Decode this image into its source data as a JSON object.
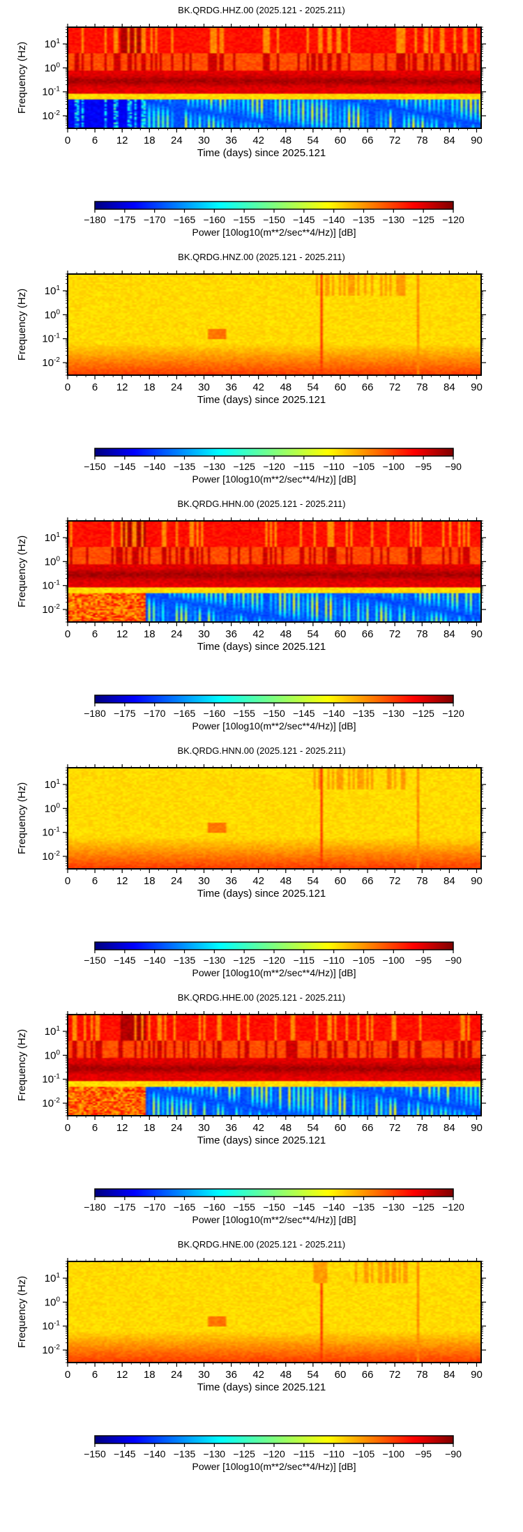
{
  "chart_data": [
    {
      "type": "heatmap",
      "title": "BK.QRDG.HHZ.00 (2025.121 - 2025.211)",
      "xlabel": "Time (days) since 2025.121",
      "ylabel": "Frequency (Hz)",
      "xlim": [
        0,
        91
      ],
      "x_ticks": [
        0,
        6,
        12,
        18,
        24,
        30,
        36,
        42,
        48,
        54,
        60,
        66,
        72,
        78,
        84,
        90
      ],
      "ylim": [
        0.003,
        50
      ],
      "y_scale": "log",
      "y_ticks": [
        "10^-2",
        "10^-1",
        "10^0",
        "10^1"
      ],
      "colorbar": {
        "label": "Power [10log10(m**2/sec**4/Hz)] [dB]",
        "range": [
          -180,
          -120
        ],
        "ticks": [
          -180,
          -175,
          -170,
          -165,
          -160,
          -155,
          -150,
          -145,
          -140,
          -135,
          -130,
          -125,
          -120
        ],
        "colormap": "jet"
      },
      "style": "active"
    },
    {
      "type": "heatmap",
      "title": "BK.QRDG.HNZ.00 (2025.121 - 2025.211)",
      "xlabel": "Time (days) since 2025.121",
      "ylabel": "Frequency (Hz)",
      "xlim": [
        0,
        91
      ],
      "x_ticks": [
        0,
        6,
        12,
        18,
        24,
        30,
        36,
        42,
        48,
        54,
        60,
        66,
        72,
        78,
        84,
        90
      ],
      "ylim": [
        0.003,
        50
      ],
      "y_scale": "log",
      "y_ticks": [
        "10^-2",
        "10^-1",
        "10^0",
        "10^1"
      ],
      "colorbar": {
        "label": "Power [10log10(m**2/sec**4/Hz)] [dB]",
        "range": [
          -150,
          -90
        ],
        "ticks": [
          -150,
          -145,
          -140,
          -135,
          -130,
          -125,
          -120,
          -115,
          -110,
          -105,
          -100,
          -95,
          -90
        ],
        "colormap": "jet"
      },
      "style": "quiet"
    },
    {
      "type": "heatmap",
      "title": "BK.QRDG.HHN.00 (2025.121 - 2025.211)",
      "xlabel": "Time (days) since 2025.121",
      "ylabel": "Frequency (Hz)",
      "xlim": [
        0,
        91
      ],
      "x_ticks": [
        0,
        6,
        12,
        18,
        24,
        30,
        36,
        42,
        48,
        54,
        60,
        66,
        72,
        78,
        84,
        90
      ],
      "ylim": [
        0.003,
        50
      ],
      "y_scale": "log",
      "y_ticks": [
        "10^-2",
        "10^-1",
        "10^0",
        "10^1"
      ],
      "colorbar": {
        "label": "Power [10log10(m**2/sec**4/Hz)] [dB]",
        "range": [
          -180,
          -120
        ],
        "ticks": [
          -180,
          -175,
          -170,
          -165,
          -160,
          -155,
          -150,
          -145,
          -140,
          -135,
          -130,
          -125,
          -120
        ],
        "colormap": "jet"
      },
      "style": "active"
    },
    {
      "type": "heatmap",
      "title": "BK.QRDG.HNN.00 (2025.121 - 2025.211)",
      "xlabel": "Time (days) since 2025.121",
      "ylabel": "Frequency (Hz)",
      "xlim": [
        0,
        91
      ],
      "x_ticks": [
        0,
        6,
        12,
        18,
        24,
        30,
        36,
        42,
        48,
        54,
        60,
        66,
        72,
        78,
        84,
        90
      ],
      "ylim": [
        0.003,
        50
      ],
      "y_scale": "log",
      "y_ticks": [
        "10^-2",
        "10^-1",
        "10^0",
        "10^1"
      ],
      "colorbar": {
        "label": "Power [10log10(m**2/sec**4/Hz)] [dB]",
        "range": [
          -150,
          -90
        ],
        "ticks": [
          -150,
          -145,
          -140,
          -135,
          -130,
          -125,
          -120,
          -115,
          -110,
          -105,
          -100,
          -95,
          -90
        ],
        "colormap": "jet"
      },
      "style": "quiet"
    },
    {
      "type": "heatmap",
      "title": "BK.QRDG.HHE.00 (2025.121 - 2025.211)",
      "xlabel": "Time (days) since 2025.121",
      "ylabel": "Frequency (Hz)",
      "xlim": [
        0,
        91
      ],
      "x_ticks": [
        0,
        6,
        12,
        18,
        24,
        30,
        36,
        42,
        48,
        54,
        60,
        66,
        72,
        78,
        84,
        90
      ],
      "ylim": [
        0.003,
        50
      ],
      "y_scale": "log",
      "y_ticks": [
        "10^-2",
        "10^-1",
        "10^0",
        "10^1"
      ],
      "colorbar": {
        "label": "Power [10log10(m**2/sec**4/Hz)] [dB]",
        "range": [
          -180,
          -120
        ],
        "ticks": [
          -180,
          -175,
          -170,
          -165,
          -160,
          -155,
          -150,
          -145,
          -140,
          -135,
          -130,
          -125,
          -120
        ],
        "colormap": "jet"
      },
      "style": "active"
    },
    {
      "type": "heatmap",
      "title": "BK.QRDG.HNE.00 (2025.121 - 2025.211)",
      "xlabel": "Time (days) since 2025.121",
      "ylabel": "Frequency (Hz)",
      "xlim": [
        0,
        91
      ],
      "x_ticks": [
        0,
        6,
        12,
        18,
        24,
        30,
        36,
        42,
        48,
        54,
        60,
        66,
        72,
        78,
        84,
        90
      ],
      "ylim": [
        0.003,
        50
      ],
      "y_scale": "log",
      "y_ticks": [
        "10^-2",
        "10^-1",
        "10^0",
        "10^1"
      ],
      "colorbar": {
        "label": "Power [10log10(m**2/sec**4/Hz)] [dB]",
        "range": [
          -150,
          -90
        ],
        "ticks": [
          -150,
          -145,
          -140,
          -135,
          -130,
          -125,
          -120,
          -115,
          -110,
          -105,
          -100,
          -95,
          -90
        ],
        "colormap": "jet"
      },
      "style": "quiet"
    }
  ]
}
